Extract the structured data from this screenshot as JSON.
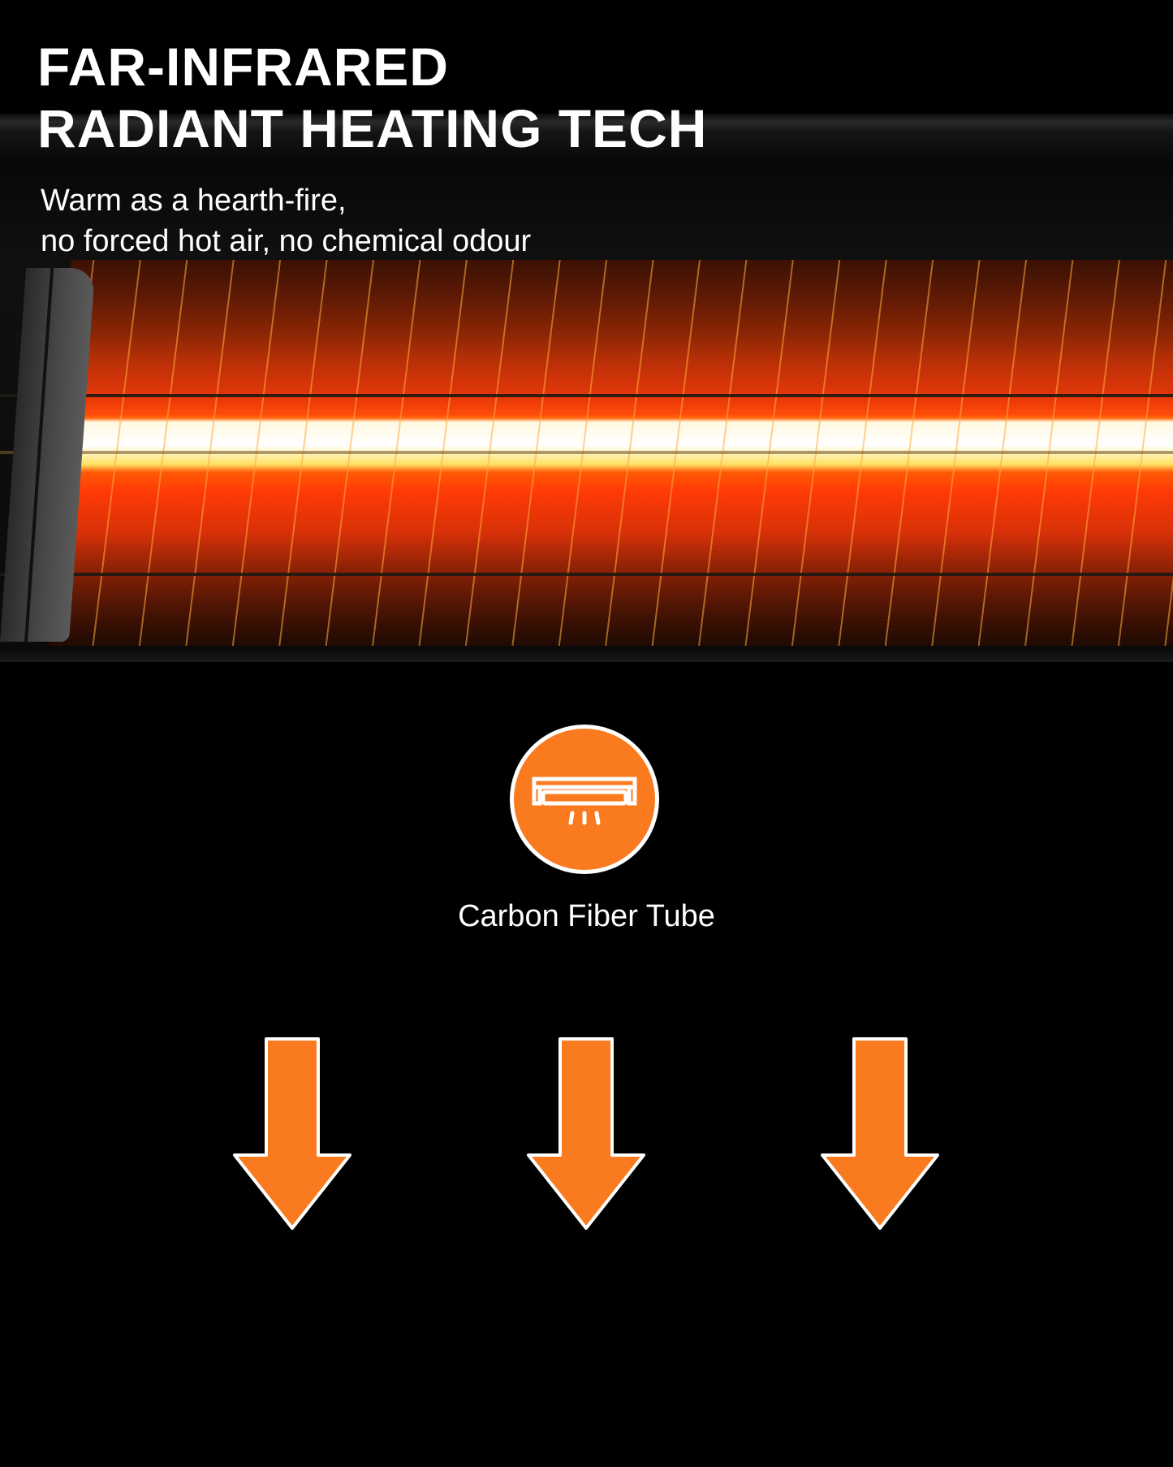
{
  "header": {
    "title_line1": "FAR-INFRARED",
    "title_line2": "RADIANT HEATING TECH",
    "subtitle_line1": "Warm as a hearth-fire,",
    "subtitle_line2": "no forced hot air, no chemical odour"
  },
  "feature": {
    "icon": "carbon-fiber-tube-heater-icon",
    "label": "Carbon Fiber Tube"
  },
  "arrows": [
    "arrow-down-icon",
    "arrow-down-icon",
    "arrow-down-icon"
  ],
  "colors": {
    "accent": "#f97a1f",
    "background": "#000000",
    "text": "#ffffff"
  }
}
